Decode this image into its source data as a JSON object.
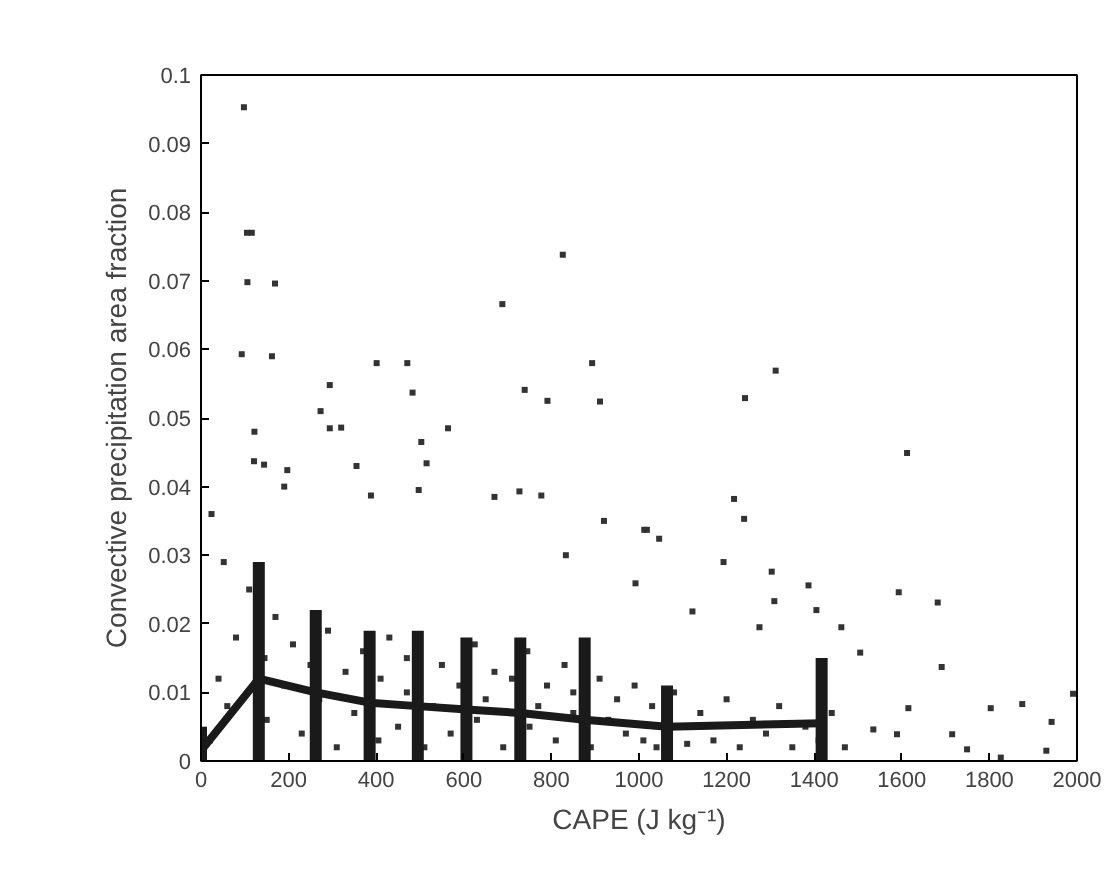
{
  "chart_data": {
    "type": "scatter",
    "xlabel": "CAPE (J kg⁻¹)",
    "ylabel": "Convective precipitation area fraction",
    "xlim": [
      0,
      2000
    ],
    "ylim": [
      0,
      0.1
    ],
    "xticks": [
      0,
      200,
      400,
      600,
      800,
      1000,
      1200,
      1400,
      1600,
      1800,
      2000
    ],
    "yticks": [
      0,
      0.01,
      0.02,
      0.03,
      0.04,
      0.05,
      0.06,
      0.07,
      0.08,
      0.09,
      0.1
    ],
    "grid": false,
    "series": [
      {
        "color": "#333333",
        "marker": "square",
        "x": [
          98,
          105,
          116,
          106,
          169,
          93,
          162,
          122,
          121,
          144,
          294,
          273,
          294,
          320,
          401,
          471,
          483,
          503,
          515,
          564,
          688,
          826,
          739,
          791,
          893,
          911,
          920,
          197,
          190,
          24,
          52,
          355,
          388,
          497,
          670,
          727,
          777,
          1012,
          833,
          1312,
          1242,
          1612,
          1217,
          1240,
          1018,
          1046,
          1193,
          1303,
          1309,
          1387,
          1593,
          1682,
          1691,
          1615,
          1803,
          1875,
          1942,
          1991,
          1505,
          1462,
          1405,
          1275,
          1122,
          992,
          1535,
          1589,
          1715,
          1749,
          1930,
          1826,
          20,
          40,
          60,
          80,
          110,
          145,
          150,
          170,
          190,
          210,
          230,
          250,
          270,
          290,
          310,
          330,
          350,
          370,
          405,
          410,
          430,
          450,
          470,
          470,
          510,
          530,
          550,
          570,
          590,
          625,
          630,
          650,
          670,
          690,
          710,
          745,
          750,
          770,
          790,
          810,
          830,
          850,
          850,
          890,
          910,
          930,
          950,
          970,
          990,
          1010,
          1030,
          1040,
          1080,
          1110,
          1140,
          1170,
          1200,
          1230,
          1260,
          1290,
          1320,
          1350,
          1380,
          1410,
          1440,
          1470
        ],
        "values": [
          0.0953,
          0.077,
          0.077,
          0.0698,
          0.0696,
          0.0593,
          0.059,
          0.048,
          0.0437,
          0.0432,
          0.0548,
          0.051,
          0.0485,
          0.0486,
          0.058,
          0.058,
          0.0537,
          0.0465,
          0.0434,
          0.0485,
          0.0666,
          0.0738,
          0.0541,
          0.0525,
          0.058,
          0.0524,
          0.035,
          0.0424,
          0.04,
          0.036,
          0.029,
          0.043,
          0.0387,
          0.0395,
          0.0385,
          0.0393,
          0.0387,
          0.0337,
          0.03,
          0.0569,
          0.0529,
          0.0449,
          0.0382,
          0.0353,
          0.0337,
          0.0324,
          0.029,
          0.0276,
          0.0233,
          0.0256,
          0.0246,
          0.0231,
          0.0137,
          0.0077,
          0.0077,
          0.0083,
          0.0057,
          0.0098,
          0.0158,
          0.0195,
          0.022,
          0.0195,
          0.0218,
          0.0259,
          0.0046,
          0.0039,
          0.0039,
          0.0017,
          0.0015,
          0.0005,
          0.003,
          0.012,
          0.008,
          0.018,
          0.025,
          0.015,
          0.006,
          0.021,
          0.011,
          0.017,
          0.004,
          0.014,
          0.009,
          0.019,
          0.002,
          0.013,
          0.007,
          0.016,
          0.003,
          0.012,
          0.018,
          0.005,
          0.01,
          0.015,
          0.002,
          0.008,
          0.014,
          0.004,
          0.011,
          0.017,
          0.006,
          0.009,
          0.013,
          0.002,
          0.012,
          0.016,
          0.005,
          0.008,
          0.011,
          0.003,
          0.014,
          0.007,
          0.01,
          0.002,
          0.012,
          0.006,
          0.009,
          0.004,
          0.011,
          0.003,
          0.008,
          0.002,
          0.01,
          0.0025,
          0.007,
          0.003,
          0.009,
          0.002,
          0.006,
          0.004,
          0.008,
          0.002,
          0.005,
          0.003,
          0.007,
          0.002
        ]
      },
      {
        "type": "line",
        "color": "#1a1a1a",
        "marker": "none",
        "line_style": "solid",
        "x": [
          0,
          132,
          262,
          385,
          495,
          606,
          729,
          876,
          1064,
          1417
        ],
        "values": [
          0.0015,
          0.012,
          0.01,
          0.0085,
          0.008,
          0.0075,
          0.007,
          0.006,
          0.005,
          0.0055
        ],
        "errors": [
          [
            0,
            0.005
          ],
          [
            0,
            0.029
          ],
          [
            0,
            0.022
          ],
          [
            0,
            0.019
          ],
          [
            0,
            0.019
          ],
          [
            0,
            0.018
          ],
          [
            0,
            0.018
          ],
          [
            0,
            0.018
          ],
          [
            0,
            0.011
          ],
          [
            0,
            0.015
          ]
        ]
      }
    ]
  }
}
